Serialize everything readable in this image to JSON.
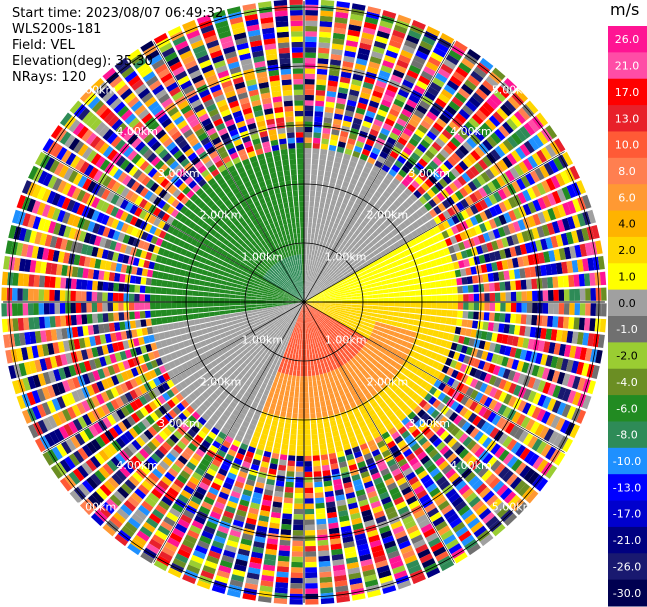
{
  "info": {
    "start_time": "Start time: 2023/08/07 06:49:32",
    "site": "WLS200s-181",
    "field": "Field: VEL",
    "elevation": "Elevation(deg): 35.30",
    "nrays": "NRays: 120"
  },
  "colorbar": {
    "unit": "m/s",
    "ticks": [
      "26.0",
      "21.0",
      "17.0",
      "13.0",
      "10.0",
      "8.0",
      "6.0",
      "4.0",
      "2.0",
      "1.0",
      "0.0",
      "-1.0",
      "-2.0",
      "-4.0",
      "-6.0",
      "-8.0",
      "-10.0",
      "-13.0",
      "-17.0",
      "-21.0",
      "-26.0",
      "-30.0"
    ],
    "colors": [
      "#ff1493",
      "#ff4da6",
      "#ff0000",
      "#e8202a",
      "#ff5a36",
      "#ff7f50",
      "#ff9933",
      "#ffb300",
      "#ffd700",
      "#ffff00",
      "#a0a0a0",
      "#707070",
      "#9acd32",
      "#6b8e23",
      "#228b22",
      "#2e8b57",
      "#1e90ff",
      "#0000ff",
      "#0000cd",
      "#000080",
      "#191970",
      "#000050"
    ]
  },
  "chart_data": {
    "type": "ppi",
    "field": "VEL",
    "units": "m/s",
    "range_rings_km": [
      1,
      2,
      3,
      4,
      5
    ],
    "ring_labels": [
      "1.00km",
      "2.00km",
      "3.00km",
      "4.00km",
      "5.00km"
    ],
    "nrays": 120,
    "max_range_km": 5.1,
    "sectors": [
      {
        "az_from": 250,
        "az_to": 360,
        "range_from_km": 0.0,
        "range_to_km": 2.6,
        "value": -6.0
      },
      {
        "az_from": 300,
        "az_to": 355,
        "range_from_km": 0.0,
        "range_to_km": 0.8,
        "value": -8.0
      },
      {
        "az_from": 0,
        "az_to": 60,
        "range_from_km": 0.0,
        "range_to_km": 2.6,
        "value": 0.0
      },
      {
        "az_from": 60,
        "az_to": 90,
        "range_from_km": 0.0,
        "range_to_km": 2.6,
        "value": 1.0
      },
      {
        "az_from": 90,
        "az_to": 150,
        "range_from_km": 0.0,
        "range_to_km": 2.6,
        "value": 2.0
      },
      {
        "az_from": 120,
        "az_to": 210,
        "range_from_km": 0.0,
        "range_to_km": 1.2,
        "value": 10.0
      },
      {
        "az_from": 105,
        "az_to": 220,
        "range_from_km": 1.2,
        "range_to_km": 1.9,
        "value": 6.0
      },
      {
        "az_from": 200,
        "az_to": 260,
        "range_from_km": 0.0,
        "range_to_km": 2.6,
        "value": 0.0
      },
      {
        "az_from": 150,
        "az_to": 200,
        "range_from_km": 1.9,
        "range_to_km": 2.6,
        "value": 2.0
      }
    ],
    "outer_noise_from_km": 2.6
  }
}
